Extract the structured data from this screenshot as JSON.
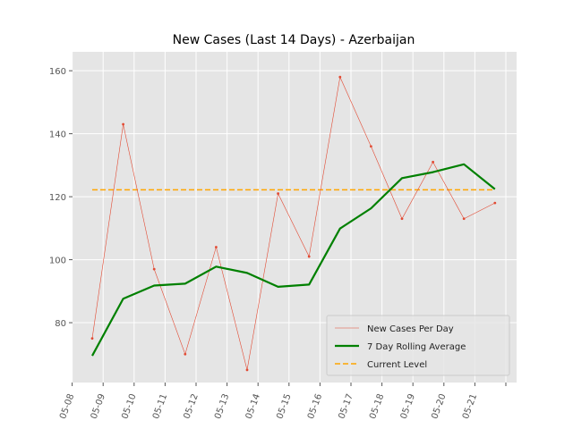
{
  "chart_data": {
    "type": "line",
    "title": "New Cases (Last 14 Days) - Azerbaijan",
    "xlabel": "",
    "ylabel": "",
    "x": [
      "05-08",
      "05-09",
      "05-10",
      "05-11",
      "05-12",
      "05-13",
      "05-14",
      "05-15",
      "05-16",
      "05-17",
      "05-18",
      "05-19",
      "05-20",
      "05-21"
    ],
    "x_ticks": [
      "05-08",
      "05-09",
      "05-10",
      "05-11",
      "05-12",
      "05-13",
      "05-14",
      "05-15",
      "05-16",
      "05-17",
      "05-18",
      "05-19",
      "05-20",
      "05-21"
    ],
    "ylim": [
      61,
      166
    ],
    "y_ticks": [
      80,
      100,
      120,
      140,
      160
    ],
    "grid": true,
    "legend_position": "bottom-right",
    "series": [
      {
        "name": "New Cases Per Day",
        "color": "#e24a33",
        "style": "thin-line-with-markers",
        "values": [
          75,
          143,
          97,
          70,
          104,
          65,
          121,
          101,
          158,
          136,
          113,
          131,
          113,
          118
        ]
      },
      {
        "name": "7 Day Rolling Average",
        "color": "#008000",
        "style": "thick-line",
        "values": [
          69.5,
          87.6,
          91.8,
          92.4,
          97.8,
          95.8,
          91.4,
          92.1,
          109.9,
          116.3,
          125.9,
          127.8,
          130.3,
          122.4
        ]
      },
      {
        "name": "Current Level",
        "color": "#ffa500",
        "style": "dashed-line",
        "values": [
          122.2,
          122.2,
          122.2,
          122.2,
          122.2,
          122.2,
          122.2,
          122.2,
          122.2,
          122.2,
          122.2,
          122.2,
          122.2,
          122.2
        ]
      }
    ]
  }
}
